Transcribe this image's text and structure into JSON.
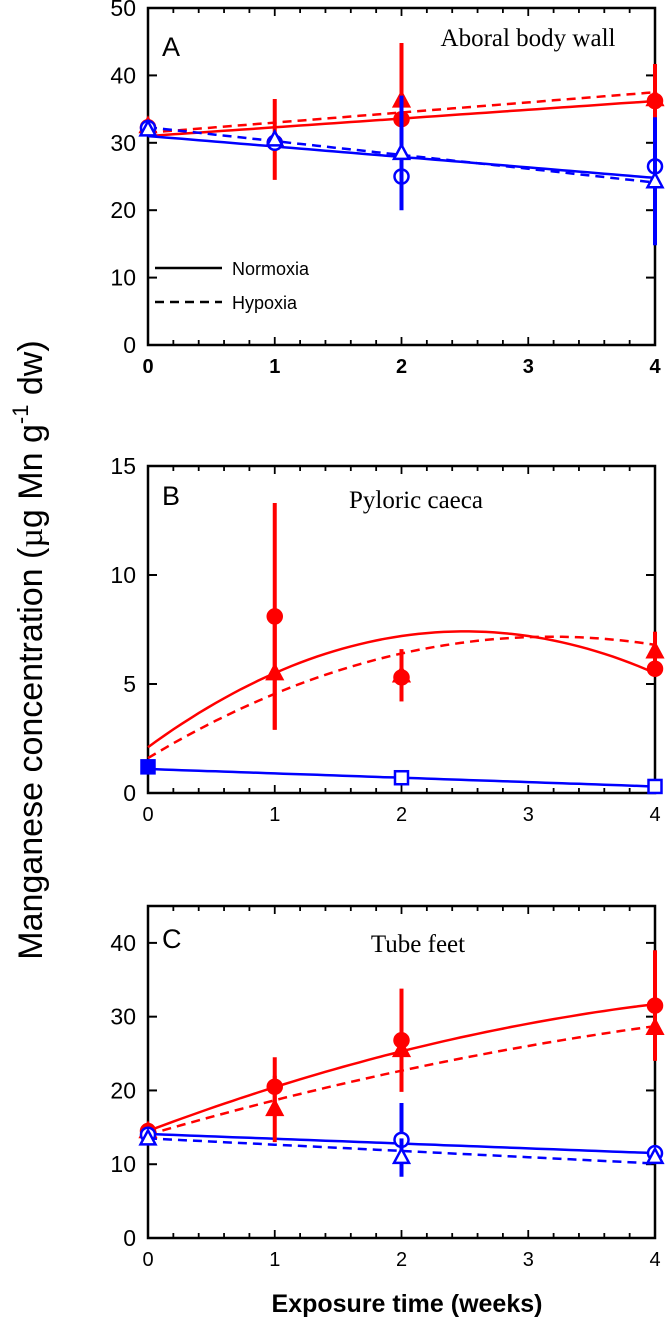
{
  "figure": {
    "ylabel_main": "Manganese concentration (",
    "ylabel_mu": "µ",
    "ylabel_unit": "g Mn g",
    "ylabel_sup": "-1",
    "ylabel_end": " dw)",
    "xlabel": "Exposure time (weeks)"
  },
  "colors": {
    "normoxia": "#ff0000",
    "hypoxia": "#0000ff",
    "axis": "#000000"
  },
  "legend": {
    "normoxia": "Normoxia",
    "hypoxia": "Hypoxia"
  },
  "chart_data": [
    {
      "type": "scatter",
      "letter": "A",
      "title": "Aboral body wall",
      "xlim": [
        0,
        4
      ],
      "ylim": [
        0,
        50
      ],
      "xticks": [
        0,
        1,
        2,
        3,
        4
      ],
      "yticks": [
        0,
        10,
        20,
        30,
        40,
        50
      ],
      "bold_xticks": true,
      "series": [
        {
          "name": "red normoxia",
          "color": "red",
          "marker": "circle",
          "fill": true,
          "x": [
            0,
            1,
            2,
            4
          ],
          "y": [
            32.3,
            30,
            33.5,
            36.2
          ],
          "err": [
            0,
            0,
            0,
            5.5
          ]
        },
        {
          "name": "red hypoxia",
          "color": "red",
          "marker": "triangle",
          "fill": true,
          "x": [
            0,
            1,
            2,
            4
          ],
          "y": [
            32.5,
            30.5,
            36.3,
            36.5
          ],
          "err": [
            0,
            6,
            8.5,
            0
          ]
        },
        {
          "name": "blue normoxia",
          "color": "blue",
          "marker": "circle",
          "fill": false,
          "x": [
            0,
            1,
            2,
            4
          ],
          "y": [
            32.2,
            30,
            25,
            26.5
          ],
          "err": [
            0,
            0,
            0,
            0
          ]
        },
        {
          "name": "blue hypoxia",
          "color": "blue",
          "marker": "triangle",
          "fill": false,
          "x": [
            0,
            1,
            2,
            4
          ],
          "y": [
            32,
            30.5,
            28.5,
            24.3
          ],
          "err": [
            0,
            0,
            8.5,
            9.5
          ]
        }
      ],
      "fits": [
        {
          "color": "red",
          "dash": false,
          "coef": [
            31,
            1.3,
            0
          ]
        },
        {
          "color": "red",
          "dash": true,
          "coef": [
            31.5,
            1.5,
            0
          ]
        },
        {
          "color": "blue",
          "dash": false,
          "coef": [
            31,
            -1.55,
            0
          ]
        },
        {
          "color": "blue",
          "dash": true,
          "coef": [
            32.3,
            -2.05,
            0
          ]
        }
      ]
    },
    {
      "type": "scatter",
      "letter": "B",
      "title": "Pyloric caeca",
      "xlim": [
        0,
        4
      ],
      "ylim": [
        0,
        15
      ],
      "xticks": [
        0,
        1,
        2,
        3,
        4
      ],
      "yticks": [
        0,
        5,
        10,
        15
      ],
      "bold_xticks": false,
      "series": [
        {
          "name": "red normoxia",
          "color": "red",
          "marker": "circle",
          "fill": true,
          "x": [
            1,
            2,
            4
          ],
          "y": [
            8.1,
            5.3,
            5.7
          ],
          "err": [
            5.2,
            0,
            0
          ]
        },
        {
          "name": "red hypoxia",
          "color": "red",
          "marker": "triangle",
          "fill": true,
          "x": [
            1,
            2,
            4
          ],
          "y": [
            5.5,
            5.4,
            6.5
          ],
          "err": [
            2.6,
            1.2,
            0.9
          ]
        },
        {
          "name": "blue normoxia",
          "color": "blue",
          "marker": "square",
          "fill": true,
          "x": [
            0
          ],
          "y": [
            1.2
          ],
          "err": [
            0
          ]
        },
        {
          "name": "blue hypoxia",
          "color": "blue",
          "marker": "square",
          "fill": false,
          "x": [
            2,
            4
          ],
          "y": [
            0.7,
            0.3
          ],
          "err": [
            0,
            0
          ]
        }
      ],
      "fits": [
        {
          "color": "red",
          "dash": false,
          "coef": [
            2.1,
            4.25,
            -0.85
          ]
        },
        {
          "color": "red",
          "dash": true,
          "coef": [
            1.6,
            3.5,
            -0.55
          ]
        },
        {
          "color": "blue",
          "dash": false,
          "coef": [
            1.1,
            -0.2,
            0
          ]
        }
      ]
    },
    {
      "type": "scatter",
      "letter": "C",
      "title": "Tube feet",
      "xlim": [
        0,
        4
      ],
      "ylim": [
        0,
        45
      ],
      "xticks": [
        0,
        1,
        2,
        3,
        4
      ],
      "yticks": [
        0,
        10,
        20,
        30,
        40
      ],
      "bold_xticks": false,
      "series": [
        {
          "name": "red normoxia",
          "color": "red",
          "marker": "circle",
          "fill": true,
          "x": [
            0,
            1,
            2,
            4
          ],
          "y": [
            14.5,
            20.5,
            26.8,
            31.5
          ],
          "err": [
            0,
            4,
            7,
            7.5
          ]
        },
        {
          "name": "red hypoxia",
          "color": "red",
          "marker": "triangle",
          "fill": true,
          "x": [
            0,
            1,
            2,
            4
          ],
          "y": [
            14.5,
            17.5,
            25.5,
            28.5
          ],
          "err": [
            0,
            4.5,
            0,
            0
          ]
        },
        {
          "name": "blue normoxia",
          "color": "blue",
          "marker": "circle",
          "fill": false,
          "x": [
            0,
            2,
            4
          ],
          "y": [
            14,
            13.3,
            11.5
          ],
          "err": [
            0,
            5,
            0
          ]
        },
        {
          "name": "blue hypoxia",
          "color": "blue",
          "marker": "triangle",
          "fill": false,
          "x": [
            0,
            2,
            4
          ],
          "y": [
            13.5,
            11,
            11
          ],
          "err": [
            0,
            2.5,
            0
          ]
        }
      ],
      "fits": [
        {
          "color": "red",
          "dash": false,
          "coef": [
            14.5,
            6.5,
            -0.55
          ]
        },
        {
          "color": "red",
          "dash": true,
          "coef": [
            14,
            5,
            -0.33
          ]
        },
        {
          "color": "blue",
          "dash": false,
          "coef": [
            14.1,
            -0.65,
            0
          ]
        },
        {
          "color": "blue",
          "dash": true,
          "coef": [
            13.5,
            -0.85,
            0
          ]
        }
      ]
    }
  ]
}
